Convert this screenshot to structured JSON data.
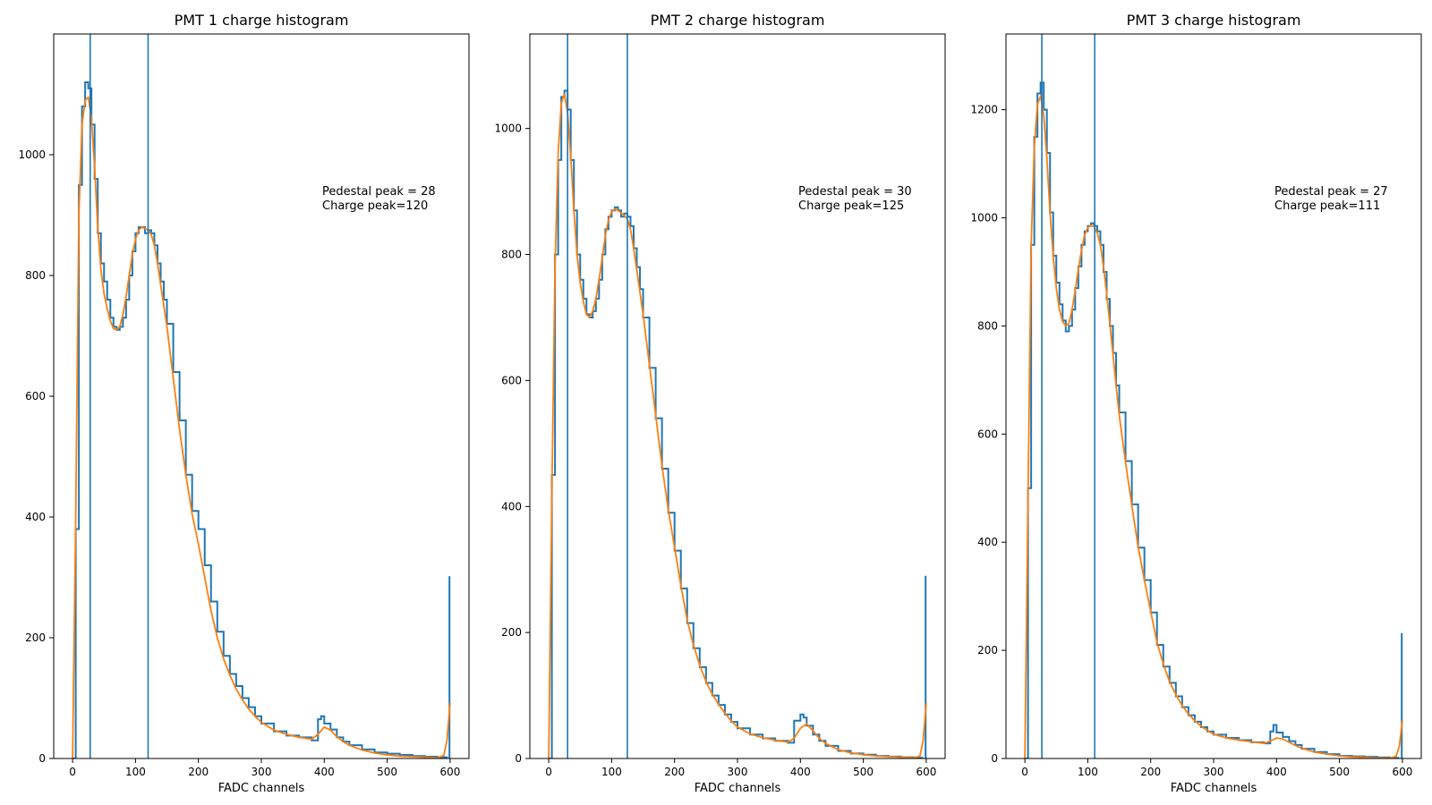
{
  "colors": {
    "histogram": "#1f77b4",
    "fit": "#ff7f0e",
    "marker": "#1f77b4",
    "axes": "#000000"
  },
  "chart_data": [
    {
      "type": "line",
      "title": "PMT 1 charge histogram",
      "xlabel": "FADC channels",
      "ylabel": "",
      "xlim": [
        -30,
        630
      ],
      "ylim": [
        0,
        1200
      ],
      "xticks": [
        0,
        100,
        200,
        300,
        400,
        500,
        600
      ],
      "yticks": [
        0,
        200,
        400,
        600,
        800,
        1000
      ],
      "grid": false,
      "pedestal_peak": 28,
      "charge_peak": 120,
      "annotation": [
        "Pedestal peak = 28",
        "Charge peak=120"
      ],
      "vlines": [
        28,
        120
      ],
      "spike": {
        "x": 599,
        "y": 302
      },
      "series": [
        {
          "kind": "histogram",
          "x": [
            0,
            5,
            10,
            15,
            20,
            25,
            30,
            35,
            40,
            45,
            50,
            55,
            60,
            65,
            70,
            75,
            80,
            85,
            90,
            95,
            100,
            105,
            110,
            115,
            120,
            125,
            130,
            135,
            140,
            145,
            150,
            160,
            170,
            180,
            190,
            200,
            210,
            220,
            230,
            240,
            250,
            260,
            270,
            280,
            290,
            300,
            320,
            340,
            360,
            380,
            390,
            395,
            400,
            410,
            420,
            430,
            440,
            460,
            480,
            500,
            520,
            540,
            560,
            580,
            595
          ],
          "y": [
            0,
            380,
            950,
            1080,
            1120,
            1110,
            1050,
            960,
            870,
            820,
            790,
            760,
            730,
            715,
            710,
            715,
            730,
            760,
            800,
            840,
            870,
            880,
            880,
            870,
            875,
            870,
            850,
            820,
            790,
            760,
            720,
            640,
            560,
            470,
            410,
            380,
            320,
            260,
            210,
            170,
            140,
            120,
            100,
            85,
            70,
            58,
            45,
            38,
            35,
            30,
            65,
            70,
            58,
            48,
            35,
            28,
            22,
            15,
            10,
            8,
            6,
            4,
            3,
            2,
            1
          ]
        },
        {
          "kind": "fit",
          "x": [
            0,
            5,
            10,
            15,
            20,
            25,
            30,
            35,
            40,
            45,
            50,
            55,
            60,
            65,
            70,
            75,
            80,
            85,
            90,
            95,
            100,
            105,
            110,
            115,
            120,
            125,
            130,
            135,
            140,
            145,
            150,
            160,
            170,
            180,
            190,
            200,
            210,
            220,
            230,
            240,
            250,
            260,
            270,
            280,
            290,
            300,
            320,
            340,
            360,
            380,
            390,
            400,
            410,
            420,
            430,
            440,
            460,
            480,
            500,
            520,
            540,
            560,
            580,
            590,
            595,
            600
          ],
          "y": [
            0,
            400,
            900,
            1050,
            1090,
            1095,
            1060,
            980,
            880,
            810,
            770,
            745,
            725,
            712,
            710,
            715,
            735,
            765,
            800,
            835,
            860,
            875,
            880,
            878,
            875,
            868,
            850,
            820,
            785,
            750,
            715,
            630,
            545,
            470,
            405,
            355,
            300,
            245,
            200,
            165,
            138,
            115,
            97,
            82,
            70,
            60,
            47,
            40,
            35,
            32,
            40,
            52,
            47,
            36,
            28,
            22,
            14,
            9,
            6,
            4,
            3,
            2,
            1,
            5,
            30,
            92
          ]
        }
      ]
    },
    {
      "type": "line",
      "title": "PMT 2 charge histogram",
      "xlabel": "FADC channels",
      "ylabel": "",
      "xlim": [
        -30,
        630
      ],
      "ylim": [
        0,
        1150
      ],
      "xticks": [
        0,
        100,
        200,
        300,
        400,
        500,
        600
      ],
      "yticks": [
        0,
        200,
        400,
        600,
        800,
        1000
      ],
      "grid": false,
      "pedestal_peak": 30,
      "charge_peak": 125,
      "annotation": [
        "Pedestal peak = 30",
        "Charge peak=125"
      ],
      "vlines": [
        30,
        125
      ],
      "spike": {
        "x": 599,
        "y": 290
      },
      "series": [
        {
          "kind": "histogram",
          "x": [
            0,
            5,
            10,
            15,
            20,
            25,
            30,
            35,
            40,
            45,
            50,
            55,
            60,
            65,
            70,
            75,
            80,
            85,
            90,
            95,
            100,
            105,
            110,
            115,
            120,
            125,
            130,
            135,
            140,
            145,
            150,
            160,
            170,
            180,
            190,
            200,
            210,
            220,
            230,
            240,
            250,
            260,
            270,
            280,
            290,
            300,
            320,
            340,
            360,
            380,
            390,
            400,
            405,
            410,
            420,
            430,
            440,
            460,
            480,
            500,
            520,
            540,
            560,
            580,
            595
          ],
          "y": [
            0,
            450,
            800,
            950,
            1050,
            1060,
            1030,
            950,
            870,
            800,
            760,
            730,
            705,
            700,
            710,
            730,
            760,
            800,
            840,
            860,
            870,
            875,
            870,
            860,
            865,
            860,
            845,
            810,
            780,
            745,
            700,
            620,
            540,
            460,
            390,
            330,
            270,
            215,
            175,
            145,
            120,
            100,
            85,
            70,
            58,
            48,
            38,
            32,
            28,
            25,
            60,
            70,
            65,
            52,
            38,
            28,
            20,
            12,
            8,
            6,
            4,
            3,
            2,
            1,
            1
          ]
        },
        {
          "kind": "fit",
          "x": [
            0,
            5,
            10,
            15,
            20,
            25,
            30,
            35,
            40,
            45,
            50,
            55,
            60,
            65,
            70,
            75,
            80,
            85,
            90,
            95,
            100,
            105,
            110,
            115,
            120,
            125,
            130,
            135,
            140,
            145,
            150,
            160,
            170,
            180,
            190,
            200,
            210,
            220,
            230,
            240,
            250,
            260,
            270,
            280,
            290,
            300,
            320,
            340,
            360,
            380,
            390,
            400,
            410,
            420,
            430,
            440,
            460,
            480,
            500,
            520,
            540,
            560,
            580,
            590,
            595,
            600
          ],
          "y": [
            0,
            420,
            780,
            960,
            1040,
            1055,
            1025,
            955,
            870,
            800,
            755,
            725,
            705,
            700,
            710,
            730,
            760,
            795,
            830,
            855,
            868,
            872,
            870,
            866,
            862,
            856,
            840,
            810,
            775,
            740,
            705,
            625,
            545,
            465,
            395,
            335,
            275,
            220,
            180,
            148,
            122,
            102,
            86,
            72,
            60,
            50,
            39,
            33,
            29,
            26,
            32,
            48,
            55,
            44,
            32,
            24,
            14,
            9,
            6,
            4,
            3,
            2,
            1,
            4,
            28,
            88
          ]
        }
      ]
    },
    {
      "type": "line",
      "title": "PMT 3 charge histogram",
      "xlabel": "FADC channels",
      "ylabel": "",
      "xlim": [
        -30,
        630
      ],
      "ylim": [
        0,
        1340
      ],
      "xticks": [
        0,
        100,
        200,
        300,
        400,
        500,
        600
      ],
      "yticks": [
        0,
        200,
        400,
        600,
        800,
        1000,
        1200
      ],
      "grid": false,
      "pedestal_peak": 27,
      "charge_peak": 111,
      "annotation": [
        "Pedestal peak = 27",
        "Charge peak=111"
      ],
      "vlines": [
        27,
        111
      ],
      "spike": {
        "x": 599,
        "y": 232
      },
      "series": [
        {
          "kind": "histogram",
          "x": [
            0,
            5,
            10,
            15,
            20,
            25,
            30,
            35,
            40,
            45,
            50,
            55,
            60,
            65,
            70,
            75,
            80,
            85,
            90,
            95,
            100,
            105,
            110,
            115,
            120,
            125,
            130,
            135,
            140,
            145,
            150,
            160,
            170,
            180,
            190,
            200,
            210,
            220,
            230,
            240,
            250,
            260,
            270,
            280,
            290,
            300,
            320,
            340,
            360,
            380,
            390,
            395,
            400,
            410,
            420,
            430,
            440,
            460,
            480,
            500,
            520,
            540,
            560,
            580,
            595
          ],
          "y": [
            0,
            500,
            950,
            1150,
            1230,
            1250,
            1200,
            1120,
            1010,
            930,
            880,
            840,
            810,
            790,
            800,
            830,
            870,
            910,
            950,
            975,
            985,
            990,
            985,
            975,
            950,
            900,
            850,
            800,
            750,
            690,
            640,
            550,
            470,
            390,
            330,
            270,
            210,
            170,
            140,
            115,
            95,
            80,
            68,
            58,
            50,
            44,
            38,
            34,
            30,
            28,
            50,
            62,
            48,
            40,
            32,
            25,
            18,
            12,
            8,
            5,
            4,
            3,
            2,
            1,
            1
          ]
        },
        {
          "kind": "fit",
          "x": [
            0,
            5,
            10,
            15,
            20,
            25,
            30,
            35,
            40,
            45,
            50,
            55,
            60,
            65,
            70,
            75,
            80,
            85,
            90,
            95,
            100,
            105,
            110,
            115,
            120,
            125,
            130,
            135,
            140,
            145,
            150,
            160,
            170,
            180,
            190,
            200,
            210,
            220,
            230,
            240,
            250,
            260,
            270,
            280,
            290,
            300,
            320,
            340,
            360,
            380,
            390,
            400,
            410,
            420,
            430,
            440,
            460,
            480,
            500,
            520,
            540,
            560,
            580,
            590,
            595,
            600
          ],
          "y": [
            0,
            480,
            950,
            1130,
            1210,
            1225,
            1190,
            1110,
            1010,
            930,
            870,
            830,
            808,
            800,
            805,
            830,
            865,
            905,
            940,
            968,
            982,
            986,
            984,
            972,
            950,
            910,
            860,
            805,
            748,
            690,
            635,
            548,
            468,
            392,
            330,
            272,
            215,
            175,
            142,
            118,
            98,
            82,
            70,
            60,
            52,
            45,
            38,
            34,
            31,
            28,
            32,
            38,
            36,
            30,
            24,
            19,
            12,
            8,
            5,
            3,
            2,
            1,
            1,
            4,
            22,
            70
          ]
        }
      ]
    }
  ]
}
